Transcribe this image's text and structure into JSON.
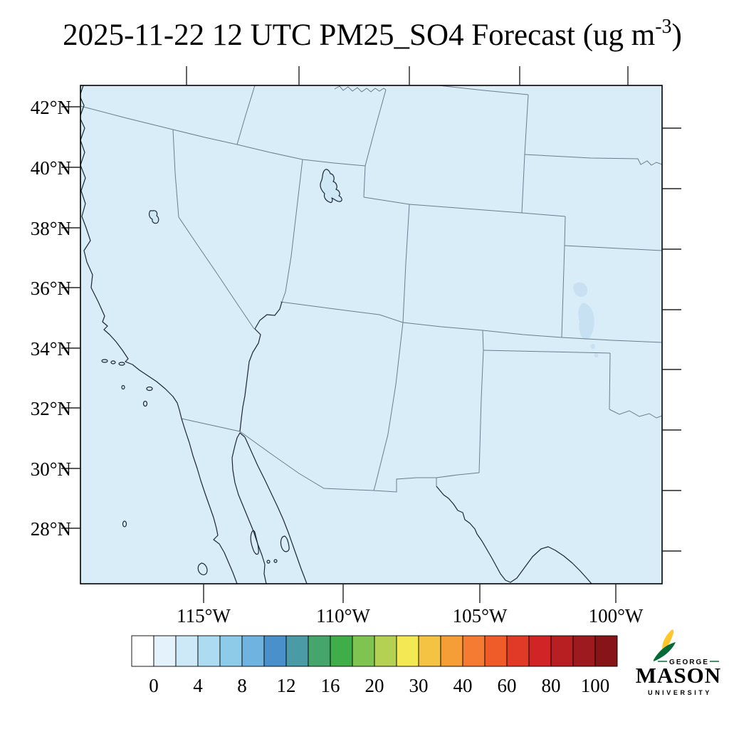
{
  "title": {
    "main": "2025-11-22 12 UTC PM25_SO4 Forecast (ug m",
    "superscript": "-3",
    "suffix": ")"
  },
  "map": {
    "lat_labels": [
      "42°N",
      "40°N",
      "38°N",
      "36°N",
      "34°N",
      "32°N",
      "30°N",
      "28°N"
    ],
    "lon_labels": [
      "115°W",
      "110°W",
      "105°W",
      "100°W"
    ],
    "fill_color": "#d9edf8",
    "state_border_color": "#6b7d8e",
    "coast_color": "#1b2733",
    "plume_color": "#c7e1f3",
    "features": [
      "california-coastline",
      "baja-california",
      "gulf-of-california",
      "sonora-coast",
      "state-borders",
      "great-salt-lake",
      "lake-tahoe",
      "colorado-river",
      "rio-grande",
      "so4-plume-sw-kansas"
    ]
  },
  "colorbar": {
    "colors": [
      "#ffffff",
      "#e4f2fb",
      "#cde8f6",
      "#addcf2",
      "#8ecbe9",
      "#6fb4e0",
      "#4a90ca",
      "#4a9ba5",
      "#46a56a",
      "#3fae49",
      "#7fc351",
      "#b4d153",
      "#f2e954",
      "#f4c344",
      "#f59e38",
      "#f47b31",
      "#ef5c2a",
      "#e13b27",
      "#d02427",
      "#b81f23",
      "#9d1a1e",
      "#871417"
    ],
    "tick_labels": [
      "0",
      "4",
      "8",
      "12",
      "16",
      "20",
      "30",
      "40",
      "60",
      "80",
      "100"
    ]
  },
  "logo": {
    "george": "GEORGE",
    "mason": "MASON",
    "university": "UNIVERSITY",
    "green": "#046A38",
    "gold": "#FFC72C"
  }
}
